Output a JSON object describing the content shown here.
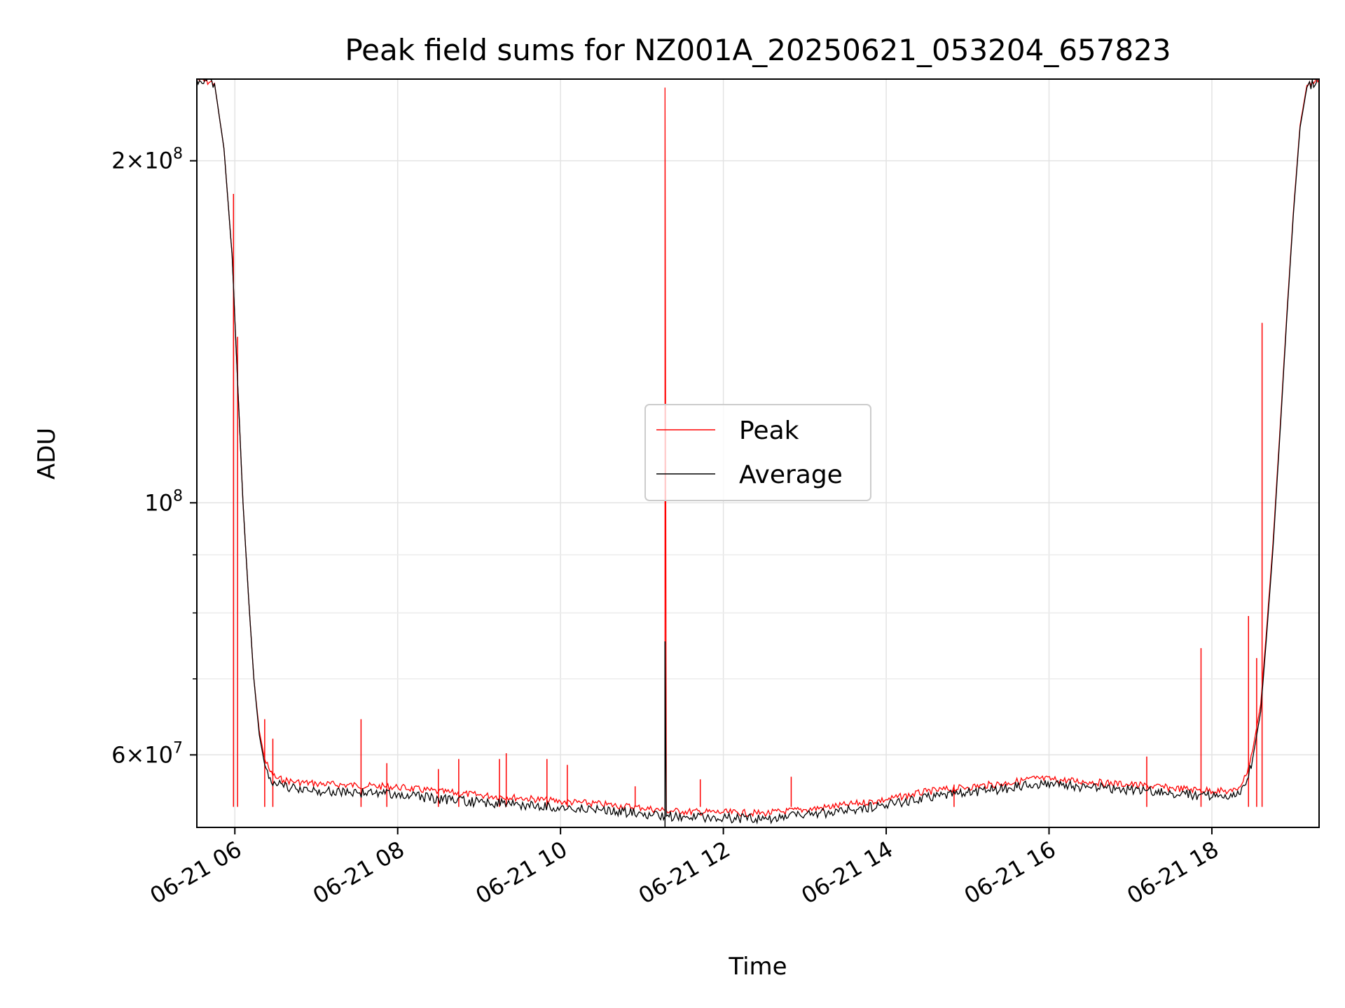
{
  "chart_data": {
    "type": "line",
    "title": "Peak field sums for NZ001A_20250621_053204_657823",
    "xlabel": "Time",
    "ylabel": "ADU",
    "y_scale": "log",
    "ylim": [
      51800000,
      236000000
    ],
    "xlim": [
      "06-21 05:32",
      "06-21 19:19"
    ],
    "grid": true,
    "legend_position": "center",
    "x_ticks": [
      {
        "value": "06-21 06:00",
        "label": "06-21 06"
      },
      {
        "value": "06-21 08:00",
        "label": "06-21 08"
      },
      {
        "value": "06-21 10:00",
        "label": "06-21 10"
      },
      {
        "value": "06-21 12:00",
        "label": "06-21 12"
      },
      {
        "value": "06-21 14:00",
        "label": "06-21 14"
      },
      {
        "value": "06-21 16:00",
        "label": "06-21 16"
      },
      {
        "value": "06-21 18:00",
        "label": "06-21 18"
      }
    ],
    "y_major_ticks": [
      {
        "value": 60000000,
        "mantissa": "6",
        "exp": "7"
      },
      {
        "value": 100000000,
        "mantissa": "",
        "exp": "8"
      },
      {
        "value": 200000000,
        "mantissa": "2",
        "exp": "8"
      }
    ],
    "y_minor_ticks": [
      70000000,
      80000000,
      90000000
    ],
    "series": [
      {
        "name": "Peak",
        "color": "#ff0000",
        "x": [
          "06-21 05:32",
          "06-21 05:45",
          "06-21 05:52",
          "06-21 05:58",
          "06-21 06:02",
          "06-21 06:06",
          "06-21 06:10",
          "06-21 06:14",
          "06-21 06:18",
          "06-21 06:22",
          "06-21 06:26",
          "06-21 06:30",
          "06-21 06:36",
          "06-21 06:45",
          "06-21 07:00",
          "06-21 07:30",
          "06-21 08:00",
          "06-21 08:30",
          "06-21 09:00",
          "06-21 09:30",
          "06-21 10:00",
          "06-21 10:30",
          "06-21 11:00",
          "06-21 11:17",
          "06-21 11:17",
          "06-21 11:18",
          "06-21 11:30",
          "06-21 12:00",
          "06-21 12:30",
          "06-21 13:00",
          "06-21 13:30",
          "06-21 14:00",
          "06-21 14:30",
          "06-21 15:00",
          "06-21 15:30",
          "06-21 15:50",
          "06-21 16:30",
          "06-21 17:00",
          "06-21 17:30",
          "06-21 17:50",
          "06-21 18:15",
          "06-21 18:20",
          "06-21 18:25",
          "06-21 18:30",
          "06-21 18:36",
          "06-21 18:40",
          "06-21 18:45",
          "06-21 18:50",
          "06-21 18:55",
          "06-21 19:00",
          "06-21 19:05",
          "06-21 19:10",
          "06-21 19:19"
        ],
        "y": [
          236000000,
          234000000,
          205000000,
          165000000,
          128000000,
          100000000,
          83000000,
          70000000,
          63000000,
          59500000,
          58000000,
          57300000,
          57000000,
          56800000,
          56600000,
          56400000,
          56200000,
          55700000,
          55300000,
          55000000,
          54600000,
          54300000,
          53900000,
          53600000,
          232000000,
          53600000,
          53500000,
          53400000,
          53300000,
          53700000,
          54200000,
          54800000,
          55700000,
          56200000,
          56700000,
          57200000,
          56800000,
          56500000,
          56100000,
          55900000,
          55700000,
          56200000,
          57500000,
          60500000,
          66500000,
          76500000,
          92000000,
          115000000,
          145000000,
          180000000,
          215000000,
          233000000,
          236000000
        ]
      },
      {
        "name": "Average",
        "color": "#000000",
        "x": [
          "06-21 05:32",
          "06-21 05:45",
          "06-21 05:52",
          "06-21 05:58",
          "06-21 06:02",
          "06-21 06:06",
          "06-21 06:10",
          "06-21 06:14",
          "06-21 06:18",
          "06-21 06:22",
          "06-21 06:26",
          "06-21 06:30",
          "06-21 06:36",
          "06-21 06:45",
          "06-21 07:00",
          "06-21 07:30",
          "06-21 08:00",
          "06-21 08:30",
          "06-21 09:00",
          "06-21 09:30",
          "06-21 10:00",
          "06-21 10:30",
          "06-21 11:00",
          "06-21 11:17",
          "06-21 11:17",
          "06-21 11:18",
          "06-21 11:30",
          "06-21 12:00",
          "06-21 12:30",
          "06-21 13:00",
          "06-21 13:30",
          "06-21 14:00",
          "06-21 14:30",
          "06-21 15:00",
          "06-21 15:30",
          "06-21 15:50",
          "06-21 16:30",
          "06-21 17:00",
          "06-21 17:30",
          "06-21 17:50",
          "06-21 18:15",
          "06-21 18:20",
          "06-21 18:25",
          "06-21 18:30",
          "06-21 18:36",
          "06-21 18:40",
          "06-21 18:45",
          "06-21 18:50",
          "06-21 18:55",
          "06-21 19:00",
          "06-21 19:05",
          "06-21 19:10",
          "06-21 19:19"
        ],
        "y": [
          236000000,
          234000000,
          205000000,
          165000000,
          128000000,
          100000000,
          83000000,
          70000000,
          62500000,
          58800000,
          57300000,
          56600000,
          56200000,
          56000000,
          55800000,
          55600000,
          55400000,
          54900000,
          54500000,
          54200000,
          53900000,
          53600000,
          53300000,
          53000000,
          75500000,
          53000000,
          52900000,
          52800000,
          52700000,
          53100000,
          53600000,
          54200000,
          55100000,
          55600000,
          56100000,
          56600000,
          56200000,
          55900000,
          55500000,
          55300000,
          55100000,
          55400000,
          56500000,
          59500000,
          65500000,
          75500000,
          91000000,
          114000000,
          144000000,
          179000000,
          214000000,
          232000000,
          236000000
        ]
      }
    ],
    "spikes": [
      {
        "series": "Peak",
        "x": "06-21 05:59",
        "y": 187000000
      },
      {
        "series": "Peak",
        "x": "06-21 06:02",
        "y": 140000000
      },
      {
        "series": "Peak",
        "x": "06-21 06:22",
        "y": 64500000
      },
      {
        "series": "Peak",
        "x": "06-21 06:28",
        "y": 62000000
      },
      {
        "series": "Peak",
        "x": "06-21 07:33",
        "y": 64500000
      },
      {
        "series": "Peak",
        "x": "06-21 07:52",
        "y": 59000000
      },
      {
        "series": "Peak",
        "x": "06-21 08:30",
        "y": 58300000
      },
      {
        "series": "Peak",
        "x": "06-21 08:45",
        "y": 59500000
      },
      {
        "series": "Peak",
        "x": "06-21 09:15",
        "y": 59500000
      },
      {
        "series": "Peak",
        "x": "06-21 09:20",
        "y": 60200000
      },
      {
        "series": "Peak",
        "x": "06-21 09:50",
        "y": 59500000
      },
      {
        "series": "Peak",
        "x": "06-21 10:05",
        "y": 58800000
      },
      {
        "series": "Peak",
        "x": "06-21 10:55",
        "y": 56300000
      },
      {
        "series": "Peak",
        "x": "06-21 11:43",
        "y": 57100000
      },
      {
        "series": "Peak",
        "x": "06-21 12:50",
        "y": 57400000
      },
      {
        "series": "Peak",
        "x": "06-21 14:50",
        "y": 56500000
      },
      {
        "series": "Peak",
        "x": "06-21 17:12",
        "y": 59800000
      },
      {
        "series": "Peak",
        "x": "06-21 17:52",
        "y": 74500000
      },
      {
        "series": "Peak",
        "x": "06-21 18:27",
        "y": 79500000
      },
      {
        "series": "Peak",
        "x": "06-21 18:33",
        "y": 73000000
      },
      {
        "series": "Peak",
        "x": "06-21 18:37",
        "y": 144000000
      }
    ]
  }
}
